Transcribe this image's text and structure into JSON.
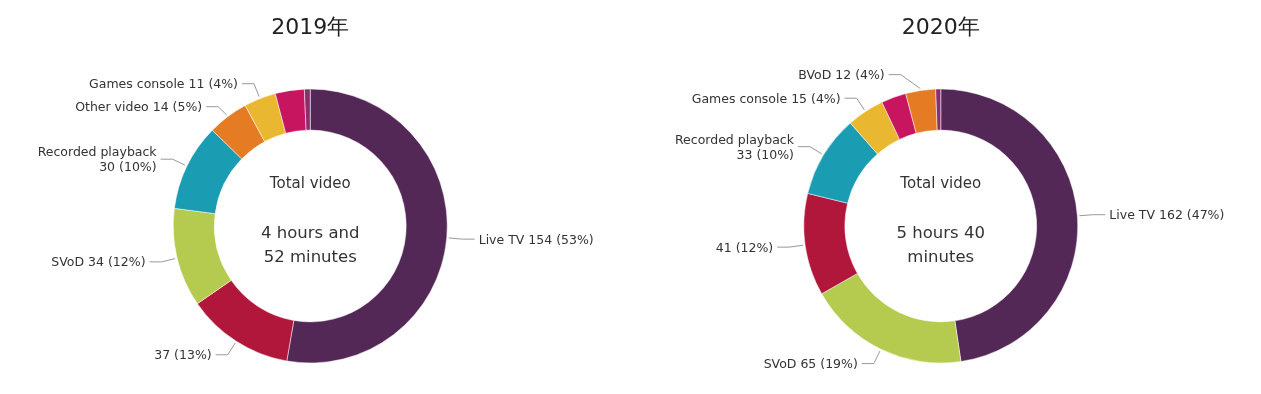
{
  "chart_data": [
    {
      "type": "donut",
      "title": "2019年",
      "annotations": [
        "Total video",
        "4 hours and 52 minutes"
      ],
      "categories": [
        "Live TV",
        null,
        "SVoD",
        "Recorded playback",
        "Other video",
        "Games console",
        null,
        null
      ],
      "values": [
        154,
        37,
        34,
        30,
        14,
        11,
        10,
        2
      ],
      "value_labels": [
        "154 (53%)",
        "37 (13%)",
        "34 (12%)",
        "30 (10%)",
        "14 (5%)",
        "11 (4%)",
        null,
        null
      ],
      "colors": [
        "#532756",
        "#b0173b",
        "#b5cb4f",
        "#1a9cb2",
        "#e57c24",
        "#e9b730",
        "#c8155f",
        "#8a2f6e"
      ]
    },
    {
      "type": "donut",
      "title": "2020年",
      "annotations": [
        "Total video",
        "5 hours 40 minutes"
      ],
      "categories": [
        "Live TV",
        "SVoD",
        null,
        "Recorded playback",
        "Games console",
        null,
        "BVoD",
        null
      ],
      "values": [
        162,
        65,
        41,
        33,
        15,
        10,
        12,
        2
      ],
      "value_labels": [
        "162 (47%)",
        "65 (19%)",
        "41 (12%)",
        "33 (10%)",
        "15 (4%)",
        null,
        "12 (4%)",
        null
      ],
      "colors": [
        "#532756",
        "#b5cb4f",
        "#b0173b",
        "#1a9cb2",
        "#e9b730",
        "#c8155f",
        "#e57c24",
        "#8a2f6e"
      ]
    }
  ]
}
